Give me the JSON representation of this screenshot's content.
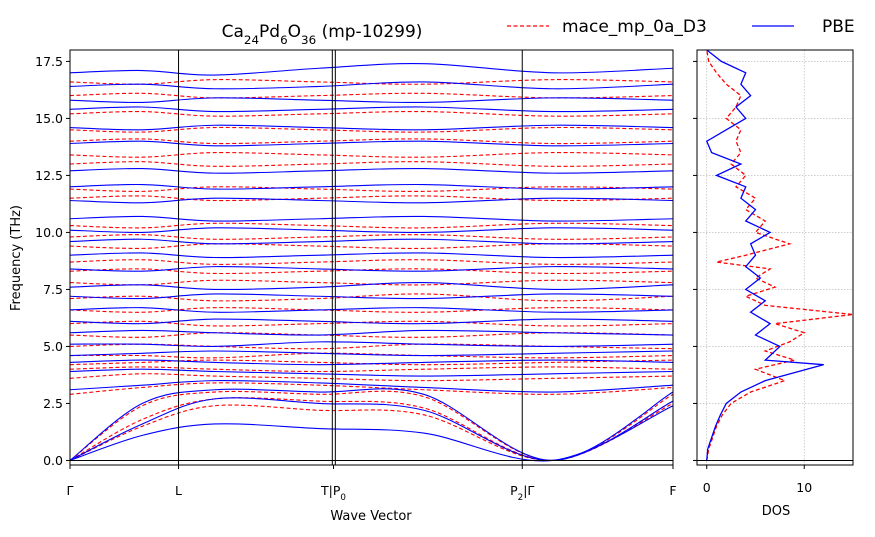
{
  "chart_data": {
    "type": "line",
    "title_parts": [
      {
        "text": "Ca",
        "sub": false
      },
      {
        "text": "24",
        "sub": true
      },
      {
        "text": "Pd",
        "sub": false
      },
      {
        "text": "6",
        "sub": true
      },
      {
        "text": "O",
        "sub": false
      },
      {
        "text": "36",
        "sub": true
      },
      {
        "text": " (mp-10299)",
        "sub": false
      }
    ],
    "legend": [
      {
        "label": "mace_mp_0a_D3",
        "color": "#ff0000",
        "dash": true
      },
      {
        "label": "PBE",
        "color": "#0000ff",
        "dash": false
      }
    ],
    "band_panel": {
      "xlabel": "Wave Vector",
      "ylabel": "Frequency (THz)",
      "ylim": [
        -0.2,
        18
      ],
      "yticks": [
        "0.0",
        "2.5",
        "5.0",
        "7.5",
        "10.0",
        "12.5",
        "15.0",
        "17.5"
      ],
      "ytick_values": [
        0,
        2.5,
        5,
        7.5,
        10,
        12.5,
        15,
        17.5
      ],
      "segment_boundaries": [
        0,
        0.18,
        0.435,
        0.44,
        0.75,
        1.0
      ],
      "xtick_labels": [
        {
          "pos": 0.0,
          "parts": [
            {
              "text": "Γ",
              "sub": false
            }
          ]
        },
        {
          "pos": 0.18,
          "parts": [
            {
              "text": "L",
              "sub": false
            }
          ]
        },
        {
          "pos": 0.437,
          "parts": [
            {
              "text": "T",
              "sub": false
            },
            {
              "text": "|",
              "sub": false
            },
            {
              "text": "P",
              "sub": false
            },
            {
              "text": "0",
              "sub": true
            }
          ]
        },
        {
          "pos": 0.75,
          "parts": [
            {
              "text": "P",
              "sub": false
            },
            {
              "text": "2",
              "sub": true
            },
            {
              "text": "|Γ",
              "sub": false
            }
          ]
        },
        {
          "pos": 1.0,
          "parts": [
            {
              "text": "F",
              "sub": false
            }
          ]
        }
      ],
      "series": [
        {
          "name": "mace_mp_0a_D3",
          "color": "#ff0000",
          "dashed": true,
          "bands": [
            [
              0,
              1.5,
              2.4,
              2.2,
              2.0,
              0,
              2.5
            ],
            [
              0,
              1.8,
              2.7,
              2.6,
              2.3,
              0,
              2.6
            ],
            [
              0,
              2.4,
              3.0,
              2.9,
              2.8,
              0,
              2.9
            ],
            [
              2.9,
              3.2,
              3.4,
              3.3,
              3.1,
              2.9,
              3.2
            ],
            [
              3.6,
              3.8,
              3.7,
              3.6,
              3.5,
              3.6,
              3.7
            ],
            [
              4.0,
              4.1,
              4.0,
              3.9,
              4.0,
              4.1,
              4.0
            ],
            [
              4.2,
              4.3,
              4.4,
              4.3,
              4.2,
              4.3,
              4.4
            ],
            [
              4.6,
              4.6,
              4.5,
              4.7,
              4.6,
              4.5,
              4.6
            ],
            [
              5.0,
              5.1,
              5.0,
              4.9,
              5.1,
              5.0,
              4.9
            ],
            [
              5.5,
              5.4,
              5.6,
              5.5,
              5.4,
              5.6,
              5.5
            ],
            [
              6.0,
              6.1,
              5.9,
              6.0,
              6.1,
              5.9,
              6.0
            ],
            [
              6.6,
              6.5,
              6.7,
              6.6,
              6.5,
              6.7,
              6.6
            ],
            [
              7.1,
              7.2,
              7.0,
              7.1,
              7.3,
              7.0,
              7.2
            ],
            [
              7.8,
              7.7,
              7.9,
              7.8,
              7.7,
              7.9,
              7.8
            ],
            [
              8.3,
              8.4,
              8.2,
              8.3,
              8.4,
              8.2,
              8.3
            ],
            [
              8.7,
              8.8,
              8.6,
              8.7,
              8.8,
              8.6,
              8.7
            ],
            [
              9.4,
              9.3,
              9.5,
              9.4,
              9.3,
              9.5,
              9.4
            ],
            [
              9.8,
              9.9,
              9.7,
              9.8,
              9.9,
              9.7,
              9.8
            ],
            [
              10.3,
              10.2,
              10.4,
              10.3,
              10.2,
              10.4,
              10.3
            ],
            [
              11.5,
              11.6,
              11.4,
              11.5,
              11.6,
              11.4,
              11.5
            ],
            [
              11.9,
              11.8,
              12.0,
              11.9,
              11.8,
              12.0,
              11.9
            ],
            [
              13.0,
              13.1,
              12.9,
              13.0,
              13.1,
              12.9,
              13.0
            ],
            [
              13.4,
              13.3,
              13.5,
              13.4,
              13.3,
              13.5,
              13.4
            ],
            [
              14.0,
              14.1,
              13.9,
              14.0,
              14.1,
              13.9,
              14.0
            ],
            [
              14.5,
              14.4,
              14.6,
              14.5,
              14.4,
              14.6,
              14.5
            ],
            [
              15.2,
              15.3,
              15.1,
              15.2,
              15.3,
              15.1,
              15.2
            ],
            [
              16.0,
              16.1,
              15.9,
              16.0,
              16.1,
              15.9,
              16.0
            ],
            [
              16.6,
              16.5,
              16.7,
              16.6,
              16.5,
              16.7,
              16.6
            ]
          ]
        },
        {
          "name": "PBE",
          "color": "#0000ff",
          "dashed": false,
          "bands": [
            [
              0,
              1.1,
              1.6,
              1.4,
              1.2,
              0,
              2.4
            ],
            [
              0,
              1.6,
              2.7,
              2.5,
              2.2,
              0,
              2.6
            ],
            [
              0,
              2.5,
              3.1,
              3.0,
              2.9,
              0,
              3.0
            ],
            [
              3.1,
              3.3,
              3.5,
              3.4,
              3.2,
              3.0,
              3.3
            ],
            [
              3.9,
              4.0,
              3.9,
              3.8,
              3.7,
              3.8,
              3.9
            ],
            [
              4.3,
              4.4,
              4.3,
              4.2,
              4.3,
              4.4,
              4.3
            ],
            [
              4.6,
              4.7,
              4.8,
              4.7,
              4.6,
              4.7,
              4.8
            ],
            [
              5.1,
              5.1,
              5.0,
              5.2,
              5.1,
              5.0,
              5.1
            ],
            [
              5.6,
              5.7,
              5.6,
              5.5,
              5.7,
              5.6,
              5.5
            ],
            [
              6.1,
              6.0,
              6.2,
              6.1,
              6.0,
              6.2,
              6.1
            ],
            [
              6.6,
              6.7,
              6.5,
              6.6,
              6.7,
              6.5,
              6.6
            ],
            [
              7.2,
              7.1,
              7.3,
              7.2,
              7.1,
              7.3,
              7.2
            ],
            [
              7.6,
              7.7,
              7.5,
              7.6,
              7.8,
              7.5,
              7.7
            ],
            [
              8.4,
              8.3,
              8.5,
              8.4,
              8.3,
              8.5,
              8.4
            ],
            [
              9.0,
              9.1,
              8.9,
              9.0,
              9.1,
              8.9,
              9.0
            ],
            [
              9.6,
              9.7,
              9.5,
              9.6,
              9.7,
              9.5,
              9.6
            ],
            [
              10.1,
              10.0,
              10.2,
              10.1,
              10.0,
              10.2,
              10.1
            ],
            [
              10.6,
              10.7,
              10.5,
              10.6,
              10.7,
              10.5,
              10.6
            ],
            [
              11.4,
              11.3,
              11.5,
              11.4,
              11.3,
              11.5,
              11.4
            ],
            [
              12.0,
              12.1,
              11.9,
              12.0,
              12.1,
              11.9,
              12.0
            ],
            [
              12.7,
              12.8,
              12.6,
              12.7,
              12.8,
              12.6,
              12.7
            ],
            [
              13.9,
              14.0,
              13.8,
              13.9,
              14.0,
              13.8,
              13.9
            ],
            [
              14.6,
              14.5,
              14.7,
              14.6,
              14.5,
              14.7,
              14.6
            ],
            [
              15.4,
              15.5,
              15.3,
              15.4,
              15.5,
              15.3,
              15.4
            ],
            [
              15.8,
              15.7,
              15.9,
              15.8,
              15.7,
              15.9,
              15.8
            ],
            [
              16.4,
              16.5,
              16.3,
              16.4,
              16.6,
              16.3,
              16.5
            ],
            [
              17.0,
              17.1,
              16.9,
              17.2,
              17.4,
              17.0,
              17.2
            ]
          ]
        }
      ]
    },
    "dos_panel": {
      "xlabel": "DOS",
      "xlim": [
        -1,
        15
      ],
      "xticks": [
        "0",
        "10"
      ],
      "xtick_values": [
        0,
        10
      ],
      "ylim": [
        -0.2,
        18
      ],
      "series": [
        {
          "name": "mace_mp_0a_D3",
          "color": "#ff0000",
          "dashed": true,
          "points": [
            [
              0,
              0
            ],
            [
              0.2,
              0.5
            ],
            [
              0.6,
              1.0
            ],
            [
              1.0,
              1.5
            ],
            [
              1.6,
              2.0
            ],
            [
              2.5,
              2.5
            ],
            [
              4.5,
              3.0
            ],
            [
              8.0,
              3.5
            ],
            [
              5.0,
              4.0
            ],
            [
              9.0,
              4.4
            ],
            [
              6.0,
              4.8
            ],
            [
              8.5,
              5.2
            ],
            [
              10.0,
              5.6
            ],
            [
              7.0,
              6.0
            ],
            [
              15.0,
              6.4
            ],
            [
              6.0,
              6.8
            ],
            [
              4.0,
              7.2
            ],
            [
              7.0,
              7.6
            ],
            [
              5.0,
              8.0
            ],
            [
              6.5,
              8.4
            ],
            [
              1.0,
              8.7
            ],
            [
              4.0,
              9.0
            ],
            [
              8.5,
              9.5
            ],
            [
              5.0,
              10.0
            ],
            [
              6.0,
              10.5
            ],
            [
              4.0,
              11.0
            ],
            [
              5.0,
              11.5
            ],
            [
              3.0,
              12.0
            ],
            [
              4.0,
              12.5
            ],
            [
              2.5,
              13.0
            ],
            [
              3.5,
              13.5
            ],
            [
              3.0,
              14.0
            ],
            [
              3.5,
              14.5
            ],
            [
              2.0,
              15.0
            ],
            [
              3.0,
              15.5
            ],
            [
              3.5,
              16.0
            ],
            [
              2.0,
              16.5
            ],
            [
              1.0,
              17.0
            ],
            [
              0.2,
              17.5
            ],
            [
              0,
              18
            ]
          ]
        },
        {
          "name": "PBE",
          "color": "#0000ff",
          "dashed": false,
          "points": [
            [
              0,
              0
            ],
            [
              0.1,
              0.5
            ],
            [
              0.5,
              1.0
            ],
            [
              0.9,
              1.5
            ],
            [
              1.4,
              2.0
            ],
            [
              2.0,
              2.5
            ],
            [
              3.5,
              3.0
            ],
            [
              6.0,
              3.5
            ],
            [
              12.0,
              4.2
            ],
            [
              6.0,
              4.4
            ],
            [
              7.5,
              5.0
            ],
            [
              5.0,
              5.5
            ],
            [
              6.5,
              6.0
            ],
            [
              4.5,
              6.5
            ],
            [
              6.0,
              7.0
            ],
            [
              4.0,
              7.5
            ],
            [
              5.5,
              8.0
            ],
            [
              4.0,
              8.5
            ],
            [
              5.0,
              9.0
            ],
            [
              4.5,
              9.5
            ],
            [
              6.5,
              10.0
            ],
            [
              4.0,
              10.5
            ],
            [
              5.0,
              11.0
            ],
            [
              3.5,
              11.5
            ],
            [
              4.0,
              12.0
            ],
            [
              1.0,
              12.5
            ],
            [
              3.5,
              13.0
            ],
            [
              0.5,
              13.5
            ],
            [
              0.0,
              14.0
            ],
            [
              2.0,
              14.5
            ],
            [
              4.0,
              15.0
            ],
            [
              3.0,
              15.5
            ],
            [
              4.5,
              16.0
            ],
            [
              3.5,
              16.5
            ],
            [
              4.0,
              17.0
            ],
            [
              1.5,
              17.5
            ],
            [
              0,
              18
            ]
          ]
        }
      ]
    }
  }
}
